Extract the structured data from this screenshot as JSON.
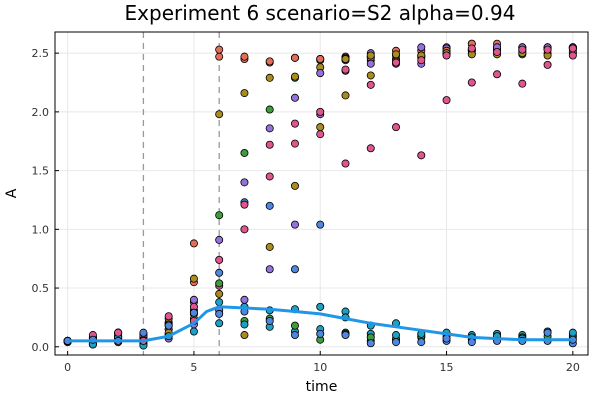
{
  "chart_data": {
    "type": "scatter",
    "title": "Experiment 6  scenario=S2  alpha=0.94",
    "xlabel": "time",
    "ylabel": "A",
    "xlim": [
      -0.5,
      20.6
    ],
    "ylim": [
      -0.07,
      2.68
    ],
    "xticks": [
      0,
      5,
      10,
      15,
      20
    ],
    "yticks": [
      0.0,
      0.5,
      1.0,
      1.5,
      2.0,
      2.5
    ],
    "xtick_labels": [
      "0",
      "5",
      "10",
      "15",
      "20"
    ],
    "ytick_labels": [
      "0.0",
      "0.5",
      "1.0",
      "1.5",
      "2.0",
      "2.5"
    ],
    "grid": true,
    "legend": "none",
    "vertical_lines": [
      3,
      6
    ],
    "colors": [
      "#e26d5a",
      "#3e9c3c",
      "#9571dd",
      "#a98b1e",
      "#1ca0c4",
      "#e1558f",
      "#4f86e0"
    ],
    "series": [
      {
        "color": "#e26d5a",
        "values": [
          0.05,
          0.08,
          0.12,
          0.02,
          0.2,
          0.55,
          2.47,
          2.45,
          2.42,
          2.46,
          2.45,
          2.47,
          2.44,
          2.52,
          2.52,
          2.55,
          2.58,
          2.53,
          2.52,
          2.5,
          2.53
        ]
      },
      {
        "color": "#3e9c3c",
        "values": [
          0.04,
          0.03,
          0.1,
          0.03,
          0.15,
          0.38,
          1.12,
          1.65,
          2.02,
          2.29,
          2.44,
          2.35,
          2.47,
          2.45,
          2.47,
          2.5,
          2.5,
          2.54,
          2.49,
          2.54,
          2.5
        ]
      },
      {
        "color": "#9571dd",
        "values": [
          0.05,
          0.05,
          0.11,
          0.07,
          0.21,
          0.4,
          0.91,
          1.4,
          1.86,
          2.12,
          1.98,
          2.44,
          2.5,
          2.41,
          2.55,
          2.54,
          2.52,
          2.55,
          2.55,
          2.53,
          2.55
        ]
      },
      {
        "color": "#a98b1e",
        "values": [
          0.05,
          0.07,
          0.12,
          0.11,
          0.24,
          0.58,
          1.98,
          2.16,
          2.29,
          2.3,
          2.38,
          2.14,
          2.31,
          2.44,
          2.46,
          2.51,
          2.52,
          2.52,
          2.51,
          2.54,
          2.51
        ]
      },
      {
        "color": "#1ca0c4",
        "values": [
          0.04,
          0.04,
          0.09,
          0.1,
          0.18,
          0.31,
          0.38,
          0.34,
          0.17,
          0.13,
          0.34,
          0.3,
          0.11,
          0.2,
          0.1,
          0.11,
          0.1,
          0.11,
          0.1,
          0.06,
          0.08
        ]
      },
      {
        "color": "#e1558f",
        "values": [
          0.05,
          0.08,
          0.12,
          0.08,
          0.26,
          0.34,
          0.52,
          1.0,
          1.45,
          1.73,
          1.81,
          1.56,
          1.69,
          1.87,
          1.63,
          2.1,
          2.25,
          2.32,
          2.24,
          2.4,
          2.48
        ]
      },
      {
        "color": "#4f86e0",
        "values": [
          0.05,
          0.02,
          0.04,
          0.05,
          0.1,
          0.28,
          0.63,
          1.23,
          1.2,
          0.66,
          1.04,
          0.12,
          0.05,
          0.06,
          0.08,
          0.05,
          0.06,
          0.06,
          0.06,
          0.05,
          0.03
        ]
      },
      {
        "color": "#e26d5a",
        "values": [
          0.05,
          0.02,
          0.04,
          0.06,
          0.11,
          0.88,
          2.53,
          2.47,
          2.43,
          2.46,
          2.45,
          2.46,
          2.46,
          2.48,
          2.48,
          2.52,
          2.58,
          2.58,
          2.54,
          2.55,
          2.55
        ]
      },
      {
        "color": "#3e9c3c",
        "values": [
          0.05,
          0.06,
          0.07,
          0.04,
          0.15,
          0.24,
          0.54,
          0.22,
          0.24,
          0.18,
          0.06,
          0.11,
          0.08,
          0.07,
          0.09,
          0.09,
          0.08,
          0.09,
          0.08,
          0.09,
          0.1
        ]
      },
      {
        "color": "#9571dd",
        "values": [
          0.05,
          0.03,
          0.07,
          0.09,
          0.07,
          0.19,
          0.31,
          0.4,
          0.66,
          1.04,
          2.33,
          2.45,
          2.41,
          2.42,
          2.41,
          2.49,
          2.53,
          2.55,
          2.55,
          2.55,
          2.55
        ]
      },
      {
        "color": "#a98b1e",
        "values": [
          0.05,
          0.03,
          0.08,
          0.06,
          0.12,
          0.29,
          0.45,
          0.1,
          0.85,
          1.37,
          1.87,
          2.45,
          2.48,
          2.49,
          2.48,
          2.5,
          2.49,
          2.49,
          2.5,
          2.48,
          2.54
        ]
      },
      {
        "color": "#1ca0c4",
        "values": [
          0.05,
          0.02,
          0.08,
          0.01,
          0.09,
          0.13,
          0.2,
          0.19,
          0.31,
          0.32,
          0.15,
          0.25,
          0.18,
          0.1,
          0.11,
          0.12,
          0.08,
          0.09,
          0.07,
          0.13,
          0.12
        ]
      },
      {
        "color": "#e1558f",
        "values": [
          0.05,
          0.1,
          0.12,
          0.05,
          0.19,
          0.22,
          0.74,
          1.21,
          1.72,
          1.9,
          2.0,
          2.36,
          2.23,
          2.42,
          2.44,
          2.48,
          2.54,
          2.51,
          2.53,
          2.53,
          2.54
        ]
      },
      {
        "color": "#4f86e0",
        "values": [
          0.05,
          0.06,
          0.05,
          0.12,
          0.18,
          0.29,
          0.28,
          0.3,
          0.22,
          0.1,
          0.11,
          0.1,
          0.03,
          0.04,
          0.04,
          0.07,
          0.04,
          0.05,
          0.05,
          0.12,
          0.06
        ]
      }
    ],
    "mean_line": {
      "color": "#1f96e8",
      "x": [
        0,
        1,
        2,
        3,
        4,
        5,
        5.5,
        6,
        7,
        8,
        9,
        10,
        11,
        12,
        13,
        14,
        15,
        16,
        17,
        18,
        19,
        20
      ],
      "values": [
        0.05,
        0.05,
        0.05,
        0.05,
        0.09,
        0.2,
        0.3,
        0.34,
        0.33,
        0.32,
        0.3,
        0.28,
        0.24,
        0.2,
        0.17,
        0.14,
        0.11,
        0.08,
        0.07,
        0.06,
        0.06,
        0.06
      ]
    }
  }
}
